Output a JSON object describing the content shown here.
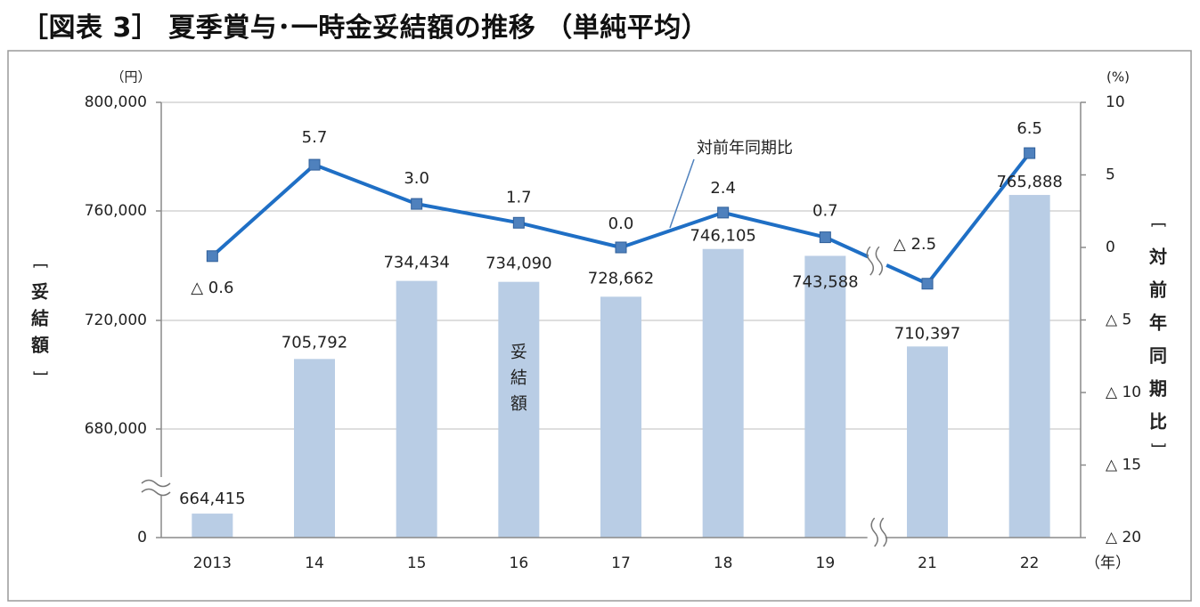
{
  "page_title": "［図表 3］ 夏季賞与･一時金妥結額の推移 （単純平均）",
  "chart_data": {
    "type": "bar",
    "categories": [
      "2013",
      "14",
      "15",
      "16",
      "17",
      "18",
      "19",
      "21",
      "22"
    ],
    "x_unit": "（年）",
    "series": [
      {
        "name": "妥結額",
        "kind": "bar",
        "axis": "left",
        "values": [
          664415,
          705792,
          734434,
          734090,
          728662,
          746105,
          743588,
          710397,
          765888
        ],
        "labels": [
          "664,415",
          "705,792",
          "734,434",
          "734,090",
          "728,662",
          "746,105",
          "743,588",
          "710,397",
          "765,888"
        ],
        "color": "#b9cde5"
      },
      {
        "name": "対前年同期比",
        "kind": "line",
        "axis": "right",
        "values": [
          -0.6,
          5.7,
          3.0,
          1.7,
          0.0,
          2.4,
          0.7,
          -2.5,
          6.5
        ],
        "labels": [
          "△ 0.6",
          "5.7",
          "3.0",
          "1.7",
          "0.0",
          "2.4",
          "0.7",
          "△ 2.5",
          "6.5"
        ],
        "color": "#1f6fc5",
        "marker_color": "#4f81bd"
      }
    ],
    "left_axis": {
      "unit": "（円）",
      "title": [
        "[",
        "妥",
        "結",
        "額",
        "]"
      ],
      "ticks": [
        0,
        680000,
        720000,
        760000,
        800000
      ],
      "tick_labels": [
        "0",
        "680,000",
        "720,000",
        "760,000",
        "800,000"
      ],
      "range_with_break": [
        0,
        660000,
        800000
      ]
    },
    "right_axis": {
      "unit": "(%)",
      "title": [
        "[",
        "対",
        "前",
        "年",
        "同",
        "期",
        "比",
        "]"
      ],
      "ylim": [
        -20,
        10
      ],
      "ticks": [
        10,
        5,
        0,
        -5,
        -10,
        -15,
        -20
      ],
      "tick_labels": [
        "10",
        "5",
        "0",
        "△ 5",
        "△ 10",
        "△ 15",
        "△ 20"
      ]
    },
    "annotations": {
      "bar_series_label": [
        "妥",
        "結",
        "額"
      ],
      "line_series_label": "対前年同期比"
    },
    "grid": true,
    "legend": "none"
  }
}
